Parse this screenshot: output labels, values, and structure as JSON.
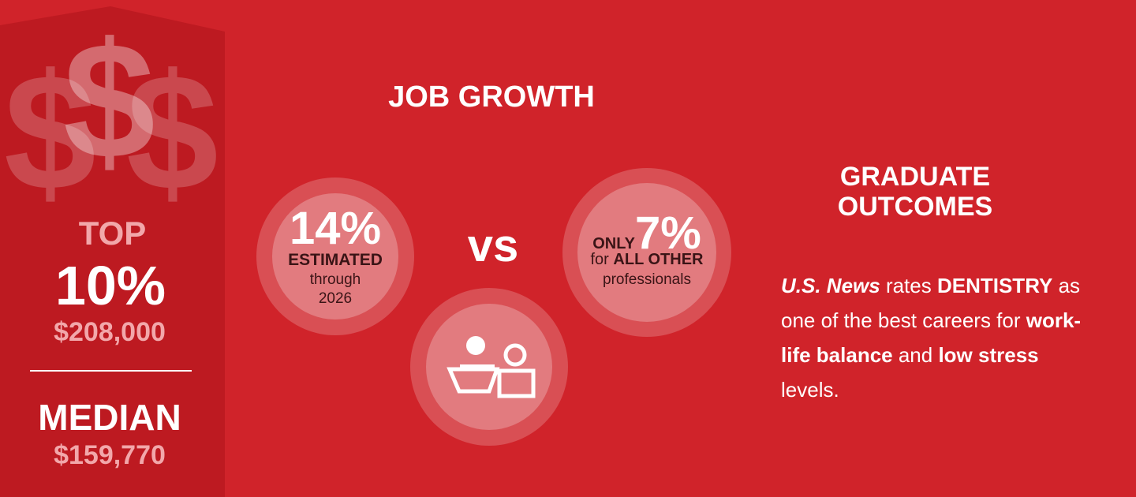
{
  "salary": {
    "top_label": "TOP",
    "top_value": "10%",
    "top_amount": "$208,000",
    "median_label": "MEDIAN",
    "median_amount": "$159,770"
  },
  "job_growth": {
    "title": "JOB GROWTH",
    "dentistry": {
      "value": "14%",
      "label": "ESTIMATED",
      "line1": "through",
      "line2": "2026"
    },
    "vs": "vs",
    "others": {
      "prefix": "ONLY",
      "value": "7%",
      "line1a": "for",
      "line1b": "ALL OTHER",
      "line2": "professionals"
    }
  },
  "graduate_outcomes": {
    "title_line1": "GRADUATE",
    "title_line2": "OUTCOMES",
    "text": [
      "U.S. News",
      " rates ",
      "DENTISTRY",
      " as one of the best careers for ",
      "work-life balance",
      " and ",
      "low stress",
      " levels."
    ]
  }
}
